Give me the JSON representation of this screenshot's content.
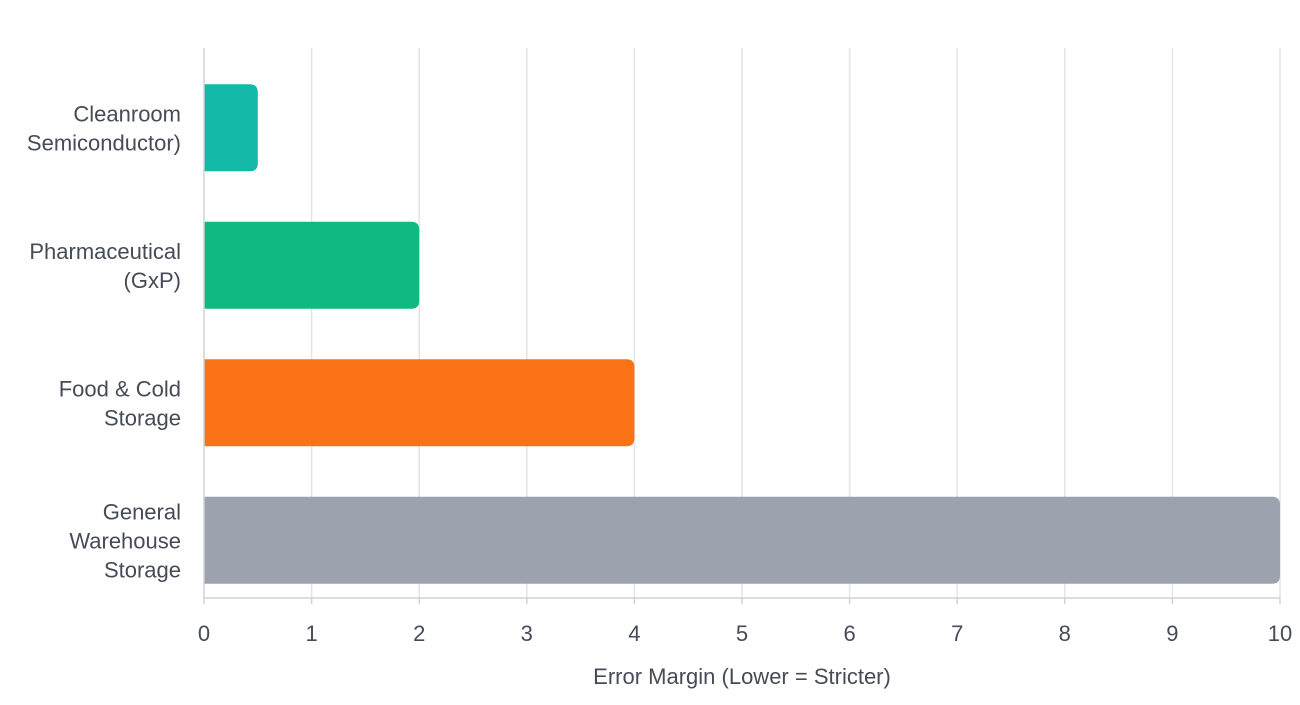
{
  "chart_data": {
    "type": "bar",
    "orientation": "horizontal",
    "title": "",
    "xlabel": "Error Margin (Lower = Stricter)",
    "ylabel": "",
    "xlim": [
      0,
      10
    ],
    "x_ticks": [
      0,
      1,
      2,
      3,
      4,
      5,
      6,
      7,
      8,
      9,
      10
    ],
    "grid": "vertical",
    "legend": "none",
    "categories": [
      [
        "Cleanroom",
        "Semiconductor)"
      ],
      [
        "Pharmaceutical",
        "(GxP)"
      ],
      [
        "Food & Cold",
        "Storage"
      ],
      [
        "General",
        "Warehouse",
        "Storage"
      ]
    ],
    "values": [
      0.5,
      2,
      4,
      10
    ],
    "colors": [
      "#14b8a6",
      "#10b981",
      "#f97316",
      "#9ca3af"
    ]
  }
}
